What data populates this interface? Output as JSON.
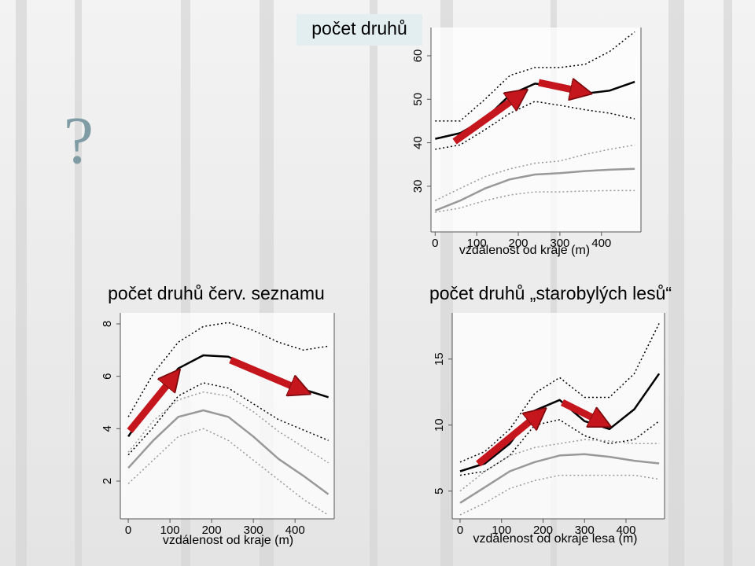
{
  "annotation": "?",
  "chart_data": [
    {
      "type": "line",
      "title": "počet druhů",
      "xlabel": "vzdálenost od kraje (m)",
      "x": [
        0,
        60,
        120,
        180,
        240,
        300,
        360,
        420,
        480
      ],
      "xlim": [
        -10,
        495
      ],
      "ylim": [
        19.5,
        66.5
      ],
      "xticks": [
        0,
        100,
        200,
        300,
        400
      ],
      "yticks": [
        30,
        40,
        50,
        60
      ],
      "series": [
        {
          "color": "#000000",
          "style": "solid",
          "values": [
            40.9,
            42.2,
            45.5,
            51,
            53.6,
            53,
            51.3,
            52,
            54
          ]
        },
        {
          "color": "#000000",
          "style": "dotted",
          "values": [
            45,
            45,
            50,
            55.5,
            57.3,
            57.3,
            58,
            61,
            65.5
          ]
        },
        {
          "color": "#000000",
          "style": "dotted",
          "values": [
            38.5,
            39.5,
            43,
            46.8,
            49.5,
            48.6,
            47.6,
            46.8,
            45.5
          ]
        },
        {
          "color": "#999999",
          "style": "solid",
          "values": [
            24.4,
            26.7,
            29.5,
            31.6,
            32.7,
            33,
            33.5,
            33.8,
            34
          ]
        },
        {
          "color": "#999999",
          "style": "dotted",
          "values": [
            26.7,
            29.5,
            32.2,
            34,
            35.3,
            35.8,
            37.3,
            38.5,
            39.5
          ]
        },
        {
          "color": "#999999",
          "style": "dotted",
          "values": [
            24,
            25,
            26.7,
            28,
            28.7,
            28.7,
            28.9,
            29,
            29
          ]
        }
      ]
    },
    {
      "type": "line",
      "title": "počet druhů červ. seznamu",
      "xlabel": "vzdálenost od kraje (m)",
      "x": [
        0,
        60,
        120,
        180,
        240,
        300,
        360,
        420,
        480
      ],
      "xlim": [
        -19,
        494
      ],
      "ylim": [
        0.56,
        8.42
      ],
      "xticks": [
        0,
        100,
        200,
        300,
        400
      ],
      "yticks": [
        2,
        4,
        6,
        8
      ],
      "series": [
        {
          "color": "#000000",
          "style": "solid",
          "values": [
            3.7,
            5.1,
            6.3,
            6.8,
            6.75,
            6.3,
            5.75,
            5.5,
            5.2
          ]
        },
        {
          "color": "#000000",
          "style": "dotted",
          "values": [
            4.45,
            6.1,
            7.3,
            7.9,
            8.05,
            7.75,
            7.3,
            7,
            7.15
          ]
        },
        {
          "color": "#000000",
          "style": "dotted",
          "values": [
            3,
            4.05,
            5.25,
            5.75,
            5.55,
            4.95,
            4.35,
            3.95,
            3.55
          ]
        },
        {
          "color": "#999999",
          "style": "solid",
          "values": [
            2.5,
            3.55,
            4.45,
            4.7,
            4.45,
            3.7,
            2.85,
            2.2,
            1.5
          ]
        },
        {
          "color": "#999999",
          "style": "dotted",
          "values": [
            3.1,
            4.3,
            5.1,
            5.4,
            5.25,
            4.65,
            3.9,
            3.3,
            2.7
          ]
        },
        {
          "color": "#999999",
          "style": "dotted",
          "values": [
            1.9,
            2.8,
            3.7,
            4,
            3.55,
            2.8,
            2.05,
            1.3,
            0.7
          ]
        }
      ]
    },
    {
      "type": "line",
      "title": "počet druhů „starobylých lesů“",
      "xlabel": "vzdálenost od okraje lesa (m)",
      "x": [
        0,
        60,
        120,
        180,
        240,
        300,
        360,
        420,
        480
      ],
      "xlim": [
        -19,
        493
      ],
      "ylim": [
        2.9,
        18.5
      ],
      "xticks": [
        0,
        100,
        200,
        300,
        400
      ],
      "yticks": [
        5,
        10,
        15
      ],
      "series": [
        {
          "color": "#000000",
          "style": "solid",
          "values": [
            6.5,
            7.1,
            8.6,
            11.1,
            11.9,
            10.3,
            9.7,
            11.2,
            13.9
          ]
        },
        {
          "color": "#000000",
          "style": "dotted",
          "values": [
            7.2,
            8,
            9.7,
            12.4,
            13.6,
            12.1,
            12.1,
            13.9,
            17.7
          ]
        },
        {
          "color": "#000000",
          "style": "dotted",
          "values": [
            6.2,
            6.5,
            7.7,
            10,
            10.4,
            9.2,
            8.6,
            8.9,
            10.3
          ]
        },
        {
          "color": "#999999",
          "style": "solid",
          "values": [
            4.1,
            5.3,
            6.5,
            7.2,
            7.7,
            7.8,
            7.6,
            7.3,
            7.1
          ]
        },
        {
          "color": "#999999",
          "style": "dotted",
          "values": [
            5,
            6.5,
            7.7,
            8.3,
            8.6,
            8.9,
            8.8,
            8.6,
            8.6
          ]
        },
        {
          "color": "#999999",
          "style": "dotted",
          "values": [
            3.2,
            4.1,
            5.2,
            5.8,
            6.2,
            6.2,
            6.2,
            6.2,
            5.9
          ]
        }
      ]
    }
  ]
}
